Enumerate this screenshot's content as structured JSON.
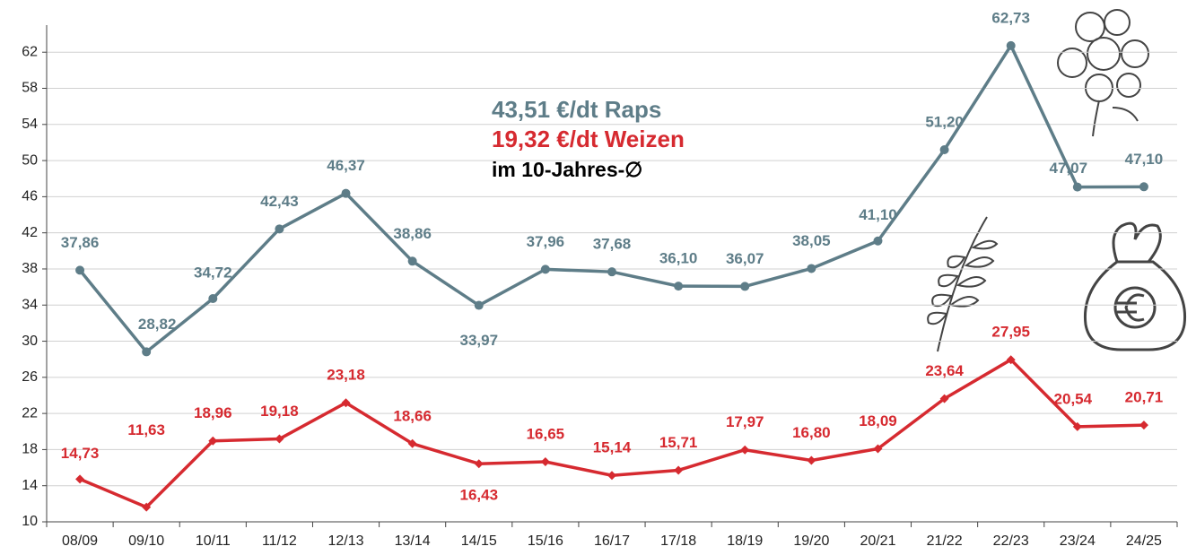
{
  "chart_data": {
    "type": "line",
    "annotations": [
      "43,51 €/dt Raps",
      "19,32 €/dt Weizen",
      "im 10-Jahres-∅"
    ],
    "categories": [
      "08/09",
      "09/10",
      "10/11",
      "11/12",
      "12/13",
      "13/14",
      "14/15",
      "15/16",
      "16/17",
      "17/18",
      "18/19",
      "19/20",
      "20/21",
      "21/22",
      "22/23",
      "23/24",
      "24/25"
    ],
    "series": [
      {
        "color": "#5e7d88",
        "marker": "circle",
        "values": [
          37.86,
          28.82,
          34.72,
          42.43,
          46.37,
          38.86,
          33.97,
          37.96,
          37.68,
          36.1,
          36.07,
          38.05,
          41.1,
          51.2,
          62.73,
          47.07,
          47.1
        ],
        "value_labels": [
          "37,86",
          "28,82",
          "34,72",
          "42,43",
          "46,37",
          "38,86",
          "33,97",
          "37,96",
          "37,68",
          "36,10",
          "36,07",
          "38,05",
          "41,10",
          "51,20",
          "62,73",
          "47,07",
          "47,10"
        ]
      },
      {
        "color": "#d62a30",
        "marker": "diamond",
        "values": [
          14.73,
          11.63,
          18.96,
          19.18,
          23.18,
          18.66,
          16.43,
          16.65,
          15.14,
          15.71,
          17.97,
          16.8,
          18.09,
          23.64,
          27.95,
          20.54,
          20.71
        ],
        "value_labels": [
          "14,73",
          "11,63",
          "18,96",
          "19,18",
          "23,18",
          "18,66",
          "16,43",
          "16,65",
          "15,14",
          "15,71",
          "17,97",
          "16,80",
          "18,09",
          "23,64",
          "27,95",
          "20,54",
          "20,71"
        ]
      }
    ],
    "ylim": [
      10,
      65
    ],
    "yticks": [
      10,
      14,
      18,
      22,
      26,
      30,
      34,
      38,
      42,
      46,
      50,
      54,
      58,
      62
    ],
    "grid": true
  }
}
